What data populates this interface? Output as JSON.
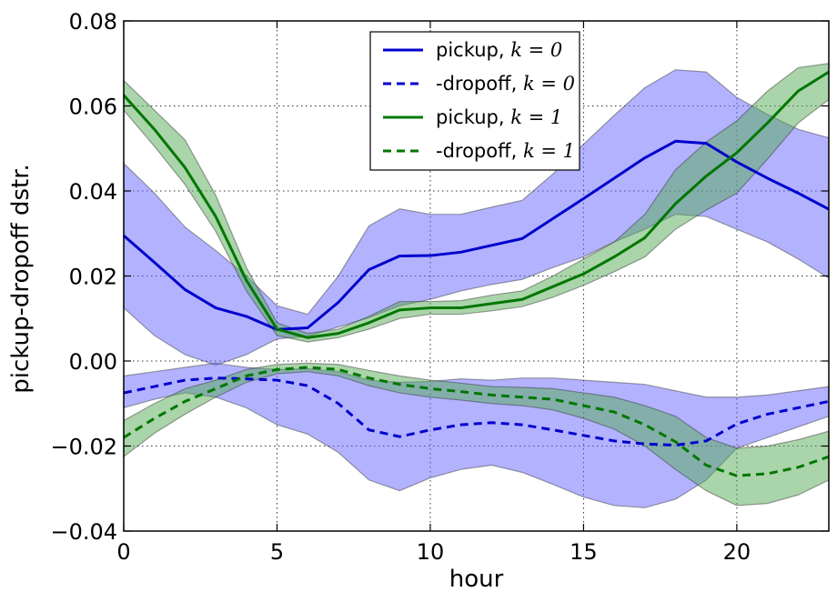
{
  "chart_data": {
    "type": "line",
    "title": "",
    "xlabel": "hour",
    "ylabel": "pickup-dropoff dstr.",
    "xlim": [
      0,
      23
    ],
    "ylim": [
      -0.04,
      0.08
    ],
    "x_ticks": [
      0,
      5,
      10,
      15,
      20
    ],
    "x_tick_labels": [
      "0",
      "5",
      "10",
      "15",
      "20"
    ],
    "y_ticks": [
      -0.04,
      -0.02,
      0.0,
      0.02,
      0.04,
      0.06,
      0.08
    ],
    "y_tick_labels": [
      "−0.04",
      "−0.02",
      "0.00",
      "0.02",
      "0.04",
      "0.06",
      "0.08"
    ],
    "grid": true,
    "legend_position": "top-center",
    "x": [
      0,
      1,
      2,
      3,
      4,
      5,
      6,
      7,
      8,
      9,
      10,
      11,
      12,
      13,
      14,
      15,
      16,
      17,
      18,
      19,
      20,
      21,
      22,
      23
    ],
    "series": [
      {
        "name": "pickup, ",
        "math_label": "k = 0",
        "color": "#0000cc",
        "band_color": "#6666ff",
        "style": "solid",
        "values": [
          0.0295,
          0.0232,
          0.0168,
          0.0125,
          0.0105,
          0.0074,
          0.0078,
          0.0138,
          0.0215,
          0.0247,
          0.0248,
          0.0256,
          0.0272,
          0.0288,
          0.0335,
          0.0382,
          0.043,
          0.0478,
          0.0517,
          0.0512,
          0.0468,
          0.043,
          0.0395,
          0.0357
        ],
        "lower": [
          0.0125,
          0.006,
          0.0015,
          -0.001,
          0.0015,
          0.0052,
          0.0058,
          0.008,
          0.0102,
          0.013,
          0.0145,
          0.0165,
          0.018,
          0.0192,
          0.022,
          0.0245,
          0.028,
          0.031,
          0.0345,
          0.034,
          0.031,
          0.028,
          0.024,
          0.0195
        ],
        "upper": [
          0.0465,
          0.0395,
          0.0315,
          0.026,
          0.02,
          0.013,
          0.011,
          0.02,
          0.0318,
          0.0358,
          0.0345,
          0.0345,
          0.0362,
          0.0378,
          0.044,
          0.051,
          0.0578,
          0.0643,
          0.0685,
          0.068,
          0.062,
          0.058,
          0.0545,
          0.0525
        ]
      },
      {
        "name": "-dropoff, ",
        "math_label": "k = 0",
        "color": "#0000cc",
        "band_color": "#6666ff",
        "style": "dashed",
        "values": [
          -0.0075,
          -0.006,
          -0.0045,
          -0.004,
          -0.0042,
          -0.0045,
          -0.0058,
          -0.01,
          -0.0162,
          -0.0178,
          -0.0162,
          -0.015,
          -0.0145,
          -0.015,
          -0.0162,
          -0.0175,
          -0.0188,
          -0.0195,
          -0.0198,
          -0.0188,
          -0.0148,
          -0.0125,
          -0.011,
          -0.0095
        ],
        "lower": [
          -0.011,
          -0.009,
          -0.0075,
          -0.0085,
          -0.011,
          -0.015,
          -0.0172,
          -0.0215,
          -0.028,
          -0.0305,
          -0.0275,
          -0.0255,
          -0.0245,
          -0.0262,
          -0.029,
          -0.032,
          -0.034,
          -0.0345,
          -0.0325,
          -0.028,
          -0.0205,
          -0.018,
          -0.0155,
          -0.013
        ],
        "upper": [
          -0.0035,
          -0.0025,
          -0.0015,
          -0.0005,
          -0.0015,
          -0.002,
          -0.0018,
          -0.0025,
          -0.0045,
          -0.005,
          -0.0048,
          -0.0042,
          -0.0045,
          -0.004,
          -0.004,
          -0.0045,
          -0.005,
          -0.0055,
          -0.007,
          -0.0085,
          -0.0085,
          -0.008,
          -0.007,
          -0.006
        ]
      },
      {
        "name": "pickup, ",
        "math_label": "k = 1",
        "color": "#007700",
        "band_color": "#55aa55",
        "style": "solid",
        "values": [
          0.0625,
          0.0545,
          0.0455,
          0.034,
          0.019,
          0.0075,
          0.0055,
          0.0065,
          0.009,
          0.012,
          0.0125,
          0.0125,
          0.0135,
          0.0145,
          0.0175,
          0.0205,
          0.0245,
          0.029,
          0.037,
          0.0435,
          0.049,
          0.056,
          0.0635,
          0.068
        ],
        "lower": [
          0.059,
          0.0505,
          0.0415,
          0.0305,
          0.0165,
          0.006,
          0.0045,
          0.0055,
          0.0075,
          0.01,
          0.011,
          0.011,
          0.0118,
          0.0128,
          0.015,
          0.0178,
          0.021,
          0.0245,
          0.031,
          0.0355,
          0.0395,
          0.0475,
          0.056,
          0.0615
        ],
        "upper": [
          0.066,
          0.059,
          0.052,
          0.039,
          0.022,
          0.009,
          0.0065,
          0.0075,
          0.0105,
          0.014,
          0.014,
          0.0142,
          0.0155,
          0.0165,
          0.02,
          0.024,
          0.028,
          0.0345,
          0.045,
          0.0515,
          0.0565,
          0.0635,
          0.069,
          0.07
        ]
      },
      {
        "name": "-dropoff, ",
        "math_label": "k = 1",
        "color": "#007700",
        "band_color": "#55aa55",
        "style": "dashed",
        "values": [
          -0.018,
          -0.0135,
          -0.0095,
          -0.0065,
          -0.0035,
          -0.002,
          -0.0015,
          -0.002,
          -0.004,
          -0.0055,
          -0.0065,
          -0.0072,
          -0.008,
          -0.0085,
          -0.009,
          -0.0105,
          -0.012,
          -0.015,
          -0.019,
          -0.0245,
          -0.027,
          -0.0265,
          -0.025,
          -0.0225
        ],
        "lower": [
          -0.0225,
          -0.017,
          -0.0125,
          -0.0085,
          -0.005,
          -0.003,
          -0.0025,
          -0.0035,
          -0.0058,
          -0.0075,
          -0.0085,
          -0.0092,
          -0.01,
          -0.0105,
          -0.0115,
          -0.0135,
          -0.016,
          -0.02,
          -0.0255,
          -0.0305,
          -0.034,
          -0.0335,
          -0.0315,
          -0.028
        ],
        "upper": [
          -0.014,
          -0.01,
          -0.0065,
          -0.0045,
          -0.002,
          -0.0008,
          -0.0005,
          -0.0008,
          -0.0022,
          -0.0035,
          -0.0045,
          -0.0052,
          -0.006,
          -0.0062,
          -0.0065,
          -0.0075,
          -0.0085,
          -0.0105,
          -0.013,
          -0.018,
          -0.0205,
          -0.02,
          -0.0185,
          -0.0165
        ]
      }
    ]
  }
}
